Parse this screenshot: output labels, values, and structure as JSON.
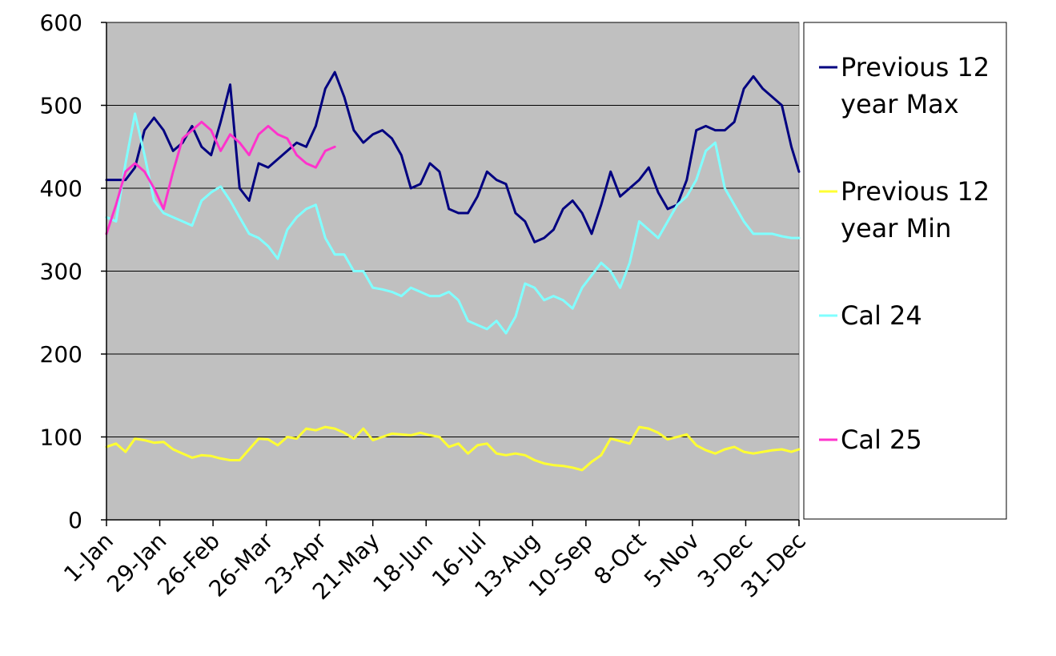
{
  "chart_data": {
    "type": "line",
    "title": "",
    "xlabel": "",
    "ylabel": "",
    "ylim": [
      0,
      600
    ],
    "yticks": [
      0,
      100,
      200,
      300,
      400,
      500,
      600
    ],
    "x_tick_labels": [
      "1-Jan",
      "29-Jan",
      "26-Feb",
      "26-Mar",
      "23-Apr",
      "21-May",
      "18-Jun",
      "16-Jul",
      "13-Aug",
      "10-Sep",
      "8-Oct",
      "5-Nov",
      "3-Dec",
      "31-Dec"
    ],
    "grid": "horizontal",
    "plot_background": "#c0c0c0",
    "legend_position": "right",
    "series": [
      {
        "name": "Previous 12 year Max",
        "color": "#000080",
        "x": [
          0,
          5,
          10,
          15,
          20,
          25,
          30,
          35,
          40,
          45,
          50,
          55,
          60,
          65,
          70,
          75,
          80,
          85,
          90,
          95,
          100,
          105,
          110,
          115,
          120,
          125,
          130,
          135,
          140,
          145,
          150,
          155,
          160,
          165,
          170,
          175,
          180,
          185,
          190,
          195,
          200,
          205,
          210,
          215,
          220,
          225,
          230,
          235,
          240,
          245,
          250,
          255,
          260,
          265,
          270,
          275,
          280,
          285,
          290,
          295,
          300,
          305,
          310,
          315,
          320,
          325,
          330,
          335,
          340,
          345,
          350,
          355,
          360,
          364
        ],
        "values": [
          410,
          410,
          410,
          425,
          470,
          485,
          470,
          445,
          455,
          475,
          450,
          440,
          480,
          525,
          400,
          385,
          430,
          425,
          435,
          445,
          455,
          450,
          475,
          520,
          540,
          510,
          470,
          455,
          465,
          470,
          460,
          440,
          400,
          405,
          430,
          420,
          375,
          370,
          370,
          390,
          420,
          410,
          405,
          370,
          360,
          335,
          340,
          350,
          375,
          385,
          370,
          345,
          380,
          420,
          390,
          400,
          410,
          425,
          395,
          375,
          380,
          410,
          470,
          475,
          470,
          470,
          480,
          520,
          535,
          520,
          510,
          500,
          450,
          420
        ]
      },
      {
        "name": "Previous 12 year Min",
        "color": "#ffff33",
        "x": [
          0,
          5,
          10,
          15,
          20,
          25,
          30,
          35,
          40,
          45,
          50,
          55,
          60,
          65,
          70,
          75,
          80,
          85,
          90,
          95,
          100,
          105,
          110,
          115,
          120,
          125,
          130,
          135,
          140,
          145,
          150,
          155,
          160,
          165,
          170,
          175,
          180,
          185,
          190,
          195,
          200,
          205,
          210,
          215,
          220,
          225,
          230,
          235,
          240,
          245,
          250,
          255,
          260,
          265,
          270,
          275,
          280,
          285,
          290,
          295,
          300,
          305,
          310,
          315,
          320,
          325,
          330,
          335,
          340,
          345,
          350,
          355,
          360,
          364
        ],
        "values": [
          88,
          92,
          82,
          98,
          96,
          93,
          94,
          85,
          80,
          75,
          78,
          77,
          74,
          72,
          72,
          85,
          98,
          97,
          90,
          100,
          98,
          110,
          108,
          112,
          110,
          105,
          98,
          110,
          96,
          100,
          104,
          103,
          102,
          105,
          102,
          100,
          88,
          92,
          80,
          90,
          92,
          80,
          78,
          80,
          78,
          72,
          68,
          66,
          65,
          63,
          60,
          70,
          78,
          98,
          95,
          92,
          112,
          110,
          105,
          97,
          100,
          103,
          90,
          84,
          80,
          85,
          88,
          82,
          80,
          82,
          84,
          85,
          82,
          85
        ]
      },
      {
        "name": "Cal 24",
        "color": "#80ffff",
        "x": [
          0,
          5,
          10,
          15,
          20,
          25,
          30,
          35,
          40,
          45,
          50,
          55,
          60,
          65,
          70,
          75,
          80,
          85,
          90,
          95,
          100,
          105,
          110,
          115,
          120,
          125,
          130,
          135,
          140,
          145,
          150,
          155,
          160,
          165,
          170,
          175,
          180,
          185,
          190,
          195,
          200,
          205,
          210,
          215,
          220,
          225,
          230,
          235,
          240,
          245,
          250,
          255,
          260,
          265,
          270,
          275,
          280,
          285,
          290,
          295,
          300,
          305,
          310,
          315,
          320,
          325,
          330,
          335,
          340,
          345,
          350,
          355,
          360,
          364
        ],
        "values": [
          365,
          360,
          430,
          490,
          440,
          385,
          370,
          365,
          360,
          355,
          385,
          395,
          402,
          385,
          365,
          345,
          340,
          330,
          315,
          350,
          365,
          375,
          380,
          340,
          320,
          320,
          300,
          300,
          280,
          278,
          275,
          270,
          280,
          275,
          270,
          270,
          275,
          265,
          240,
          235,
          230,
          240,
          225,
          245,
          285,
          280,
          265,
          270,
          265,
          255,
          280,
          295,
          310,
          300,
          280,
          310,
          360,
          350,
          340,
          360,
          380,
          390,
          410,
          445,
          455,
          400,
          380,
          360,
          345,
          345,
          345,
          342,
          340,
          340
        ]
      },
      {
        "name": "Cal 25",
        "color": "#ff33cc",
        "x": [
          0,
          5,
          10,
          15,
          20,
          25,
          30,
          35,
          40,
          45,
          50,
          55,
          60,
          65,
          70,
          75,
          80,
          85,
          90,
          95,
          100,
          105,
          110,
          115,
          120
        ],
        "values": [
          345,
          380,
          420,
          430,
          420,
          400,
          375,
          420,
          460,
          470,
          480,
          470,
          445,
          465,
          455,
          440,
          465,
          475,
          465,
          460,
          440,
          430,
          425,
          445,
          450
        ]
      }
    ]
  },
  "legend": {
    "items": [
      {
        "line1": "Previous 12",
        "line2": "year Max",
        "color": "#000080"
      },
      {
        "line1": "Previous 12",
        "line2": "year Min",
        "color": "#ffff33"
      },
      {
        "line1": "Cal 24",
        "line2": "",
        "color": "#80ffff"
      },
      {
        "line1": "Cal 25",
        "line2": "",
        "color": "#ff33cc"
      }
    ]
  }
}
